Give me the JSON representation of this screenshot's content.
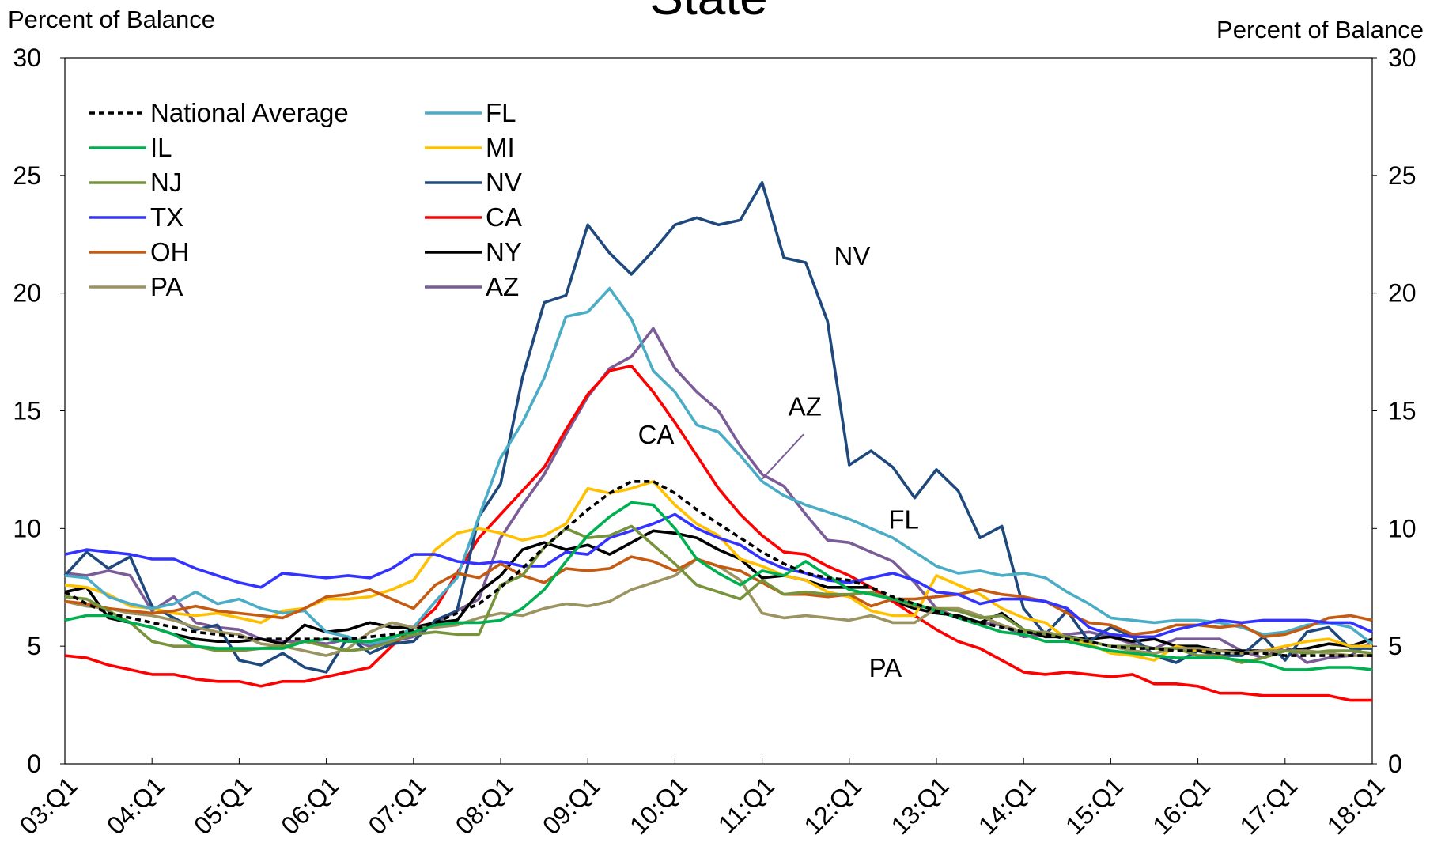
{
  "chart_data": {
    "type": "line",
    "title": "State",
    "y_label": "Percent of Balance",
    "y2_label": "Percent of Balance",
    "categories": [
      "03:Q1",
      null,
      null,
      null,
      "04:Q1",
      null,
      null,
      null,
      "05:Q1",
      null,
      null,
      null,
      "06:Q1",
      null,
      null,
      null,
      "07:Q1",
      null,
      null,
      null,
      "08:Q1",
      null,
      null,
      null,
      "09:Q1",
      null,
      null,
      null,
      "10:Q1",
      null,
      null,
      null,
      "11:Q1",
      null,
      null,
      null,
      "12:Q1",
      null,
      null,
      null,
      "13:Q1",
      null,
      null,
      null,
      "14:Q1",
      null,
      null,
      null,
      "15:Q1",
      null,
      null,
      null,
      "16:Q1",
      null,
      null,
      null,
      "17:Q1",
      null,
      null,
      null,
      "18:Q1"
    ],
    "ylim": [
      0,
      30
    ],
    "yticks": [
      0,
      5,
      10,
      15,
      20,
      25,
      30
    ],
    "y2lim": [
      0,
      30
    ],
    "y2ticks": [
      0,
      5,
      10,
      15,
      20,
      25,
      30
    ],
    "grid": false,
    "legend": "upper left",
    "annotations": [
      "NV",
      "AZ",
      "CA",
      "FL",
      "PA"
    ],
    "series": [
      {
        "name": "National Average",
        "color": "#000000",
        "dashed": true,
        "values": [
          7.3,
          6.8,
          6.4,
          6.2,
          6.0,
          5.8,
          5.6,
          5.5,
          5.4,
          5.3,
          5.3,
          5.3,
          5.3,
          5.3,
          5.4,
          5.5,
          5.7,
          6.0,
          6.4,
          6.8,
          7.5,
          8.3,
          9.2,
          10.0,
          10.8,
          11.5,
          12.0,
          12.0,
          11.5,
          10.8,
          10.2,
          9.6,
          9.0,
          8.5,
          8.1,
          7.9,
          7.8,
          7.5,
          7.1,
          6.8,
          6.5,
          6.2,
          6.0,
          5.8,
          5.6,
          5.5,
          5.3,
          5.2,
          5.0,
          4.9,
          4.9,
          4.8,
          4.8,
          4.7,
          4.7,
          4.7,
          4.6,
          4.6,
          4.6,
          4.6,
          4.6
        ]
      },
      {
        "name": "IL",
        "color": "#00b050",
        "values": [
          6.1,
          6.3,
          6.3,
          6.0,
          5.8,
          5.5,
          5.0,
          4.9,
          4.9,
          4.9,
          4.9,
          5.2,
          5.3,
          5.2,
          5.2,
          5.4,
          5.6,
          5.9,
          6.0,
          6.0,
          6.1,
          6.6,
          7.4,
          8.6,
          9.7,
          10.5,
          11.1,
          11.0,
          10.0,
          8.7,
          8.1,
          7.6,
          8.2,
          8.0,
          8.6,
          8.0,
          7.4,
          7.2,
          7.0,
          6.8,
          6.5,
          6.2,
          5.9,
          5.6,
          5.5,
          5.2,
          5.2,
          5.0,
          4.8,
          4.7,
          4.6,
          4.5,
          4.5,
          4.5,
          4.4,
          4.3,
          4.0,
          4.0,
          4.1,
          4.1,
          4.0
        ]
      },
      {
        "name": "NJ",
        "color": "#77933c",
        "values": [
          7.1,
          7.0,
          6.5,
          6.0,
          5.2,
          5.0,
          5.0,
          4.8,
          4.8,
          4.9,
          5.0,
          5.2,
          5.0,
          4.8,
          4.9,
          5.2,
          5.5,
          5.6,
          5.5,
          5.5,
          7.6,
          8.0,
          9.2,
          10.0,
          9.6,
          9.7,
          10.1,
          9.3,
          8.5,
          7.6,
          7.3,
          7.0,
          7.8,
          7.2,
          7.3,
          7.2,
          7.2,
          7.3,
          7.0,
          6.7,
          6.6,
          6.5,
          6.2,
          6.3,
          5.7,
          5.5,
          5.4,
          5.2,
          5.0,
          5.0,
          4.9,
          4.9,
          4.6,
          4.6,
          4.3,
          4.5,
          4.8,
          4.7,
          4.8,
          4.8,
          4.7
        ]
      },
      {
        "name": "TX",
        "color": "#3333ff",
        "values": [
          8.9,
          9.1,
          9.0,
          8.9,
          8.7,
          8.7,
          8.3,
          8.0,
          7.7,
          7.5,
          8.1,
          8.0,
          7.9,
          8.0,
          7.9,
          8.3,
          8.9,
          8.9,
          8.6,
          8.5,
          8.6,
          8.4,
          8.4,
          9.0,
          8.9,
          9.6,
          9.9,
          10.2,
          10.6,
          10.0,
          9.6,
          9.3,
          8.7,
          8.3,
          8.1,
          7.8,
          7.7,
          7.9,
          8.1,
          7.8,
          7.3,
          7.2,
          6.8,
          7.0,
          7.0,
          6.9,
          6.6,
          5.8,
          5.5,
          5.4,
          5.4,
          5.7,
          5.9,
          6.1,
          6.0,
          6.1,
          6.1,
          6.1,
          6.0,
          6.0,
          5.6
        ]
      },
      {
        "name": "OH",
        "color": "#c55a11",
        "values": [
          6.9,
          6.8,
          6.6,
          6.5,
          6.4,
          6.5,
          6.7,
          6.5,
          6.4,
          6.3,
          6.2,
          6.6,
          7.1,
          7.2,
          7.4,
          7.0,
          6.6,
          7.6,
          8.1,
          7.9,
          8.5,
          8.0,
          7.7,
          8.3,
          8.2,
          8.3,
          8.8,
          8.6,
          8.2,
          8.7,
          8.4,
          8.2,
          7.7,
          7.2,
          7.2,
          7.1,
          7.2,
          6.7,
          7.0,
          7.0,
          7.1,
          7.2,
          7.4,
          7.2,
          7.1,
          6.9,
          6.4,
          6.0,
          5.9,
          5.5,
          5.6,
          5.9,
          5.9,
          5.8,
          5.9,
          5.4,
          5.5,
          5.8,
          6.2,
          6.3,
          6.1
        ]
      },
      {
        "name": "PA",
        "color": "#9c9460",
        "values": [
          6.9,
          6.7,
          6.6,
          6.4,
          6.3,
          6.1,
          5.8,
          5.6,
          5.5,
          5.1,
          5.0,
          4.8,
          4.6,
          4.9,
          5.6,
          6.0,
          5.8,
          5.8,
          5.9,
          6.2,
          6.4,
          6.3,
          6.6,
          6.8,
          6.7,
          6.9,
          7.4,
          7.7,
          8.0,
          8.7,
          8.4,
          7.8,
          6.4,
          6.2,
          6.3,
          6.2,
          6.1,
          6.3,
          6.0,
          6.0,
          6.6,
          6.6,
          6.3,
          5.9,
          5.6,
          5.6,
          5.4,
          5.2,
          5.0,
          4.8,
          4.7,
          4.9,
          4.9,
          4.8,
          4.7,
          4.8,
          4.8,
          4.8,
          4.7,
          4.6,
          4.6
        ]
      },
      {
        "name": "FL",
        "color": "#4bacc6",
        "values": [
          8.0,
          7.9,
          7.1,
          6.8,
          6.6,
          6.8,
          7.3,
          6.8,
          7.0,
          6.6,
          6.4,
          6.5,
          5.6,
          5.4,
          5.1,
          5.3,
          5.8,
          6.9,
          7.9,
          10.5,
          13.0,
          14.5,
          16.4,
          19.0,
          19.2,
          20.2,
          18.9,
          16.7,
          15.8,
          14.4,
          14.1,
          13.1,
          12.0,
          11.4,
          11.0,
          10.7,
          10.4,
          10.0,
          9.6,
          9.0,
          8.4,
          8.1,
          8.2,
          8.0,
          8.1,
          7.9,
          7.3,
          6.8,
          6.2,
          6.1,
          6.0,
          6.1,
          6.1,
          6.0,
          5.8,
          5.5,
          5.6,
          5.9,
          6.0,
          5.8,
          5.1
        ]
      },
      {
        "name": "MI",
        "color": "#ffc000",
        "values": [
          7.6,
          7.5,
          7.2,
          6.7,
          6.6,
          6.4,
          6.3,
          6.4,
          6.2,
          6.0,
          6.5,
          6.6,
          7.0,
          7.0,
          7.1,
          7.4,
          7.8,
          9.1,
          9.8,
          10.0,
          9.8,
          9.5,
          9.7,
          10.2,
          11.7,
          11.5,
          11.7,
          12.0,
          11.0,
          10.2,
          9.7,
          8.7,
          8.4,
          8.0,
          7.8,
          7.3,
          7.1,
          6.5,
          6.3,
          6.3,
          8.0,
          7.6,
          7.2,
          6.6,
          6.2,
          6.0,
          5.3,
          5.1,
          4.7,
          4.6,
          4.4,
          5.0,
          4.8,
          4.8,
          4.7,
          4.8,
          5.0,
          5.2,
          5.3,
          5.0,
          5.0
        ]
      },
      {
        "name": "NV",
        "color": "#1f497d",
        "values": [
          8.0,
          9.0,
          8.3,
          8.8,
          6.7,
          6.2,
          5.7,
          5.9,
          4.4,
          4.2,
          4.7,
          4.1,
          3.9,
          5.4,
          4.7,
          5.1,
          5.2,
          6.1,
          6.5,
          10.5,
          11.9,
          16.4,
          19.6,
          19.9,
          22.9,
          21.7,
          20.8,
          21.8,
          22.9,
          23.2,
          22.9,
          23.1,
          24.7,
          21.5,
          21.3,
          18.8,
          12.7,
          13.3,
          12.6,
          11.3,
          12.5,
          11.6,
          9.6,
          10.1,
          6.6,
          5.5,
          6.5,
          5.2,
          5.8,
          5.4,
          4.6,
          4.3,
          4.8,
          4.6,
          4.6,
          5.4,
          4.4,
          5.6,
          5.8,
          4.9,
          4.9
        ]
      },
      {
        "name": "CA",
        "color": "#ff0000",
        "values": [
          4.6,
          4.5,
          4.2,
          4.0,
          3.8,
          3.8,
          3.6,
          3.5,
          3.5,
          3.3,
          3.5,
          3.5,
          3.7,
          3.9,
          4.1,
          5.0,
          5.8,
          6.6,
          8.1,
          9.6,
          10.6,
          11.6,
          12.6,
          14.2,
          15.7,
          16.7,
          16.9,
          15.8,
          14.5,
          13.1,
          11.7,
          10.6,
          9.7,
          9.0,
          8.9,
          8.4,
          8.0,
          7.5,
          6.9,
          6.3,
          5.7,
          5.2,
          4.9,
          4.4,
          3.9,
          3.8,
          3.9,
          3.8,
          3.7,
          3.8,
          3.4,
          3.4,
          3.3,
          3.0,
          3.0,
          2.9,
          2.9,
          2.9,
          2.9,
          2.7,
          2.7
        ]
      },
      {
        "name": "NY",
        "color": "#000000",
        "values": [
          7.3,
          7.5,
          6.2,
          6.0,
          5.8,
          5.5,
          5.3,
          5.2,
          5.2,
          5.3,
          5.1,
          5.9,
          5.6,
          5.7,
          6.0,
          5.8,
          5.8,
          6.0,
          6.1,
          7.3,
          8.0,
          9.1,
          9.4,
          9.1,
          9.3,
          8.9,
          9.4,
          9.9,
          9.8,
          9.6,
          9.1,
          8.7,
          7.9,
          8.0,
          7.8,
          7.5,
          7.5,
          7.5,
          6.9,
          6.6,
          6.4,
          6.3,
          6.0,
          6.4,
          5.7,
          5.4,
          5.4,
          5.3,
          5.4,
          5.2,
          5.3,
          5.0,
          5.0,
          4.8,
          4.8,
          4.8,
          4.8,
          4.9,
          5.1,
          5.0,
          5.3
        ]
      },
      {
        "name": "AZ",
        "color": "#7a5c97",
        "values": [
          8.1,
          8.0,
          8.2,
          8.0,
          6.5,
          7.1,
          6.0,
          5.8,
          5.7,
          5.3,
          5.2,
          5.2,
          5.1,
          5.3,
          5.0,
          5.2,
          5.4,
          6.0,
          6.5,
          7.0,
          9.6,
          11.0,
          12.3,
          14.0,
          15.6,
          16.8,
          17.3,
          18.5,
          16.8,
          15.8,
          15.0,
          13.5,
          12.3,
          11.8,
          10.6,
          9.5,
          9.4,
          9.0,
          8.6,
          7.7,
          6.6,
          6.2,
          6.0,
          5.9,
          5.4,
          5.5,
          5.5,
          5.6,
          5.4,
          5.1,
          4.9,
          5.3,
          5.3,
          5.3,
          4.8,
          4.5,
          5.0,
          4.3,
          4.5,
          4.6,
          5.2
        ]
      }
    ]
  }
}
